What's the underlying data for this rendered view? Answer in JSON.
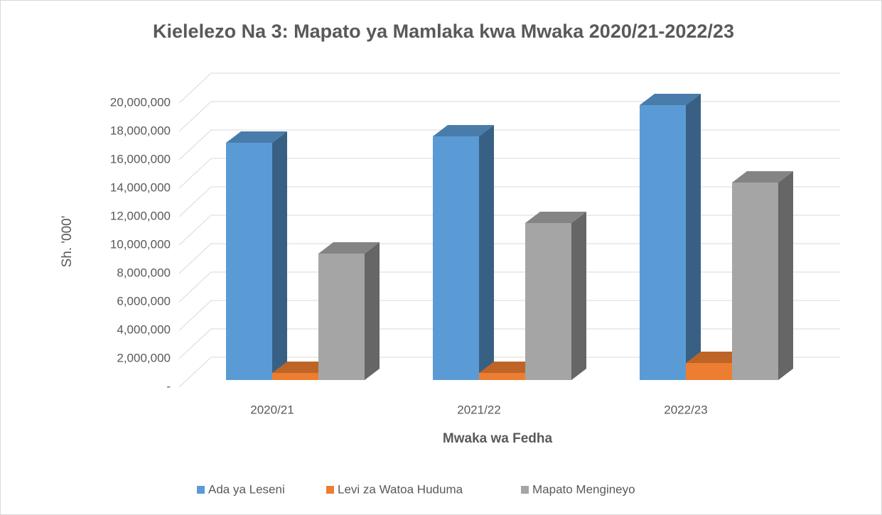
{
  "chart_data": {
    "type": "bar3d",
    "title": "Kielelezo Na 3: Mapato ya Mamlaka kwa Mwaka 2020/21-2022/23",
    "x_label": "Mwaka wa Fedha",
    "y_label": "Sh. '000'",
    "categories": [
      "2020/21",
      "2021/22",
      "2022/23"
    ],
    "series": [
      {
        "name": "Ada ya Leseni",
        "color": "#5b9bd5",
        "values": [
          16700000,
          17150000,
          19350000
        ]
      },
      {
        "name": "Levi za Watoa Huduma",
        "color": "#ed7d31",
        "values": [
          500000,
          500000,
          1200000
        ]
      },
      {
        "name": "Mapato Mengineyo",
        "color": "#a5a5a5",
        "values": [
          8900000,
          11050000,
          13900000
        ]
      }
    ],
    "ylim": [
      0,
      20000000
    ],
    "yticks": [
      {
        "value": 0,
        "label": "-"
      },
      {
        "value": 2000000,
        "label": "2,000,000"
      },
      {
        "value": 4000000,
        "label": "4,000,000"
      },
      {
        "value": 6000000,
        "label": "6,000,000"
      },
      {
        "value": 8000000,
        "label": "8,000,000"
      },
      {
        "value": 10000000,
        "label": "10,000,000"
      },
      {
        "value": 12000000,
        "label": "12,000,000"
      },
      {
        "value": 14000000,
        "label": "14,000,000"
      },
      {
        "value": 16000000,
        "label": "16,000,000"
      },
      {
        "value": 18000000,
        "label": "18,000,000"
      },
      {
        "value": 20000000,
        "label": "20,000,000"
      }
    ],
    "grid": true,
    "legend": "bottom"
  }
}
